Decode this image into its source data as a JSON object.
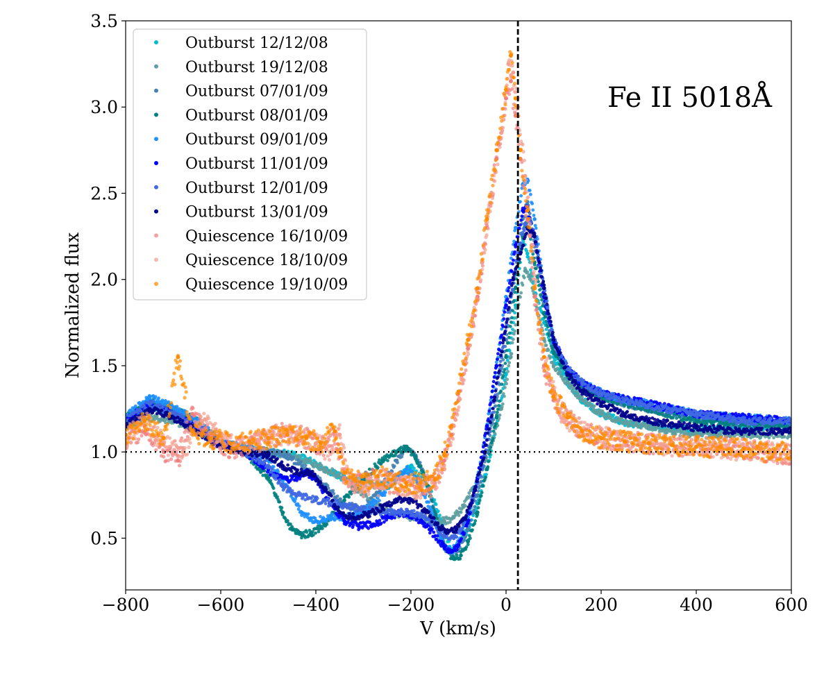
{
  "chart_data": {
    "type": "scatter",
    "title": "",
    "annotation": "Fe II 5018Å",
    "xlabel": "V (km/s)",
    "ylabel": "Normalized flux",
    "xlim": [
      -800,
      600
    ],
    "ylim": [
      0.2,
      3.5
    ],
    "xticks": [
      -800,
      -600,
      -400,
      -200,
      0,
      200,
      400,
      600
    ],
    "xtick_labels": [
      "−800",
      "−600",
      "−400",
      "−200",
      "0",
      "200",
      "400",
      "600"
    ],
    "yticks": [
      0.5,
      1.0,
      1.5,
      2.0,
      2.5,
      3.0,
      3.5
    ],
    "ytick_labels": [
      "0.5",
      "1.0",
      "1.5",
      "2.0",
      "2.5",
      "3.0",
      "3.5"
    ],
    "reference_lines": [
      {
        "orientation": "horizontal",
        "value": 1.0,
        "style": "dotted",
        "color": "#000000"
      },
      {
        "orientation": "vertical",
        "value": 25,
        "style": "dashed",
        "color": "#000000"
      }
    ],
    "legend_position": "top-left",
    "series": [
      {
        "name": "Outburst 12/12/08",
        "color": "#00bcd0",
        "x": [
          -800,
          -750,
          -700,
          -650,
          -600,
          -550,
          -500,
          -460,
          -420,
          -380,
          -340,
          -300,
          -250,
          -200,
          -160,
          -130,
          -115,
          -100,
          -80,
          -60,
          -40,
          -20,
          0,
          20,
          35,
          45,
          60,
          80,
          100,
          130,
          160,
          200,
          250,
          300,
          350,
          400,
          450,
          500,
          550,
          600
        ],
        "y": [
          1.2,
          1.26,
          1.23,
          1.16,
          1.05,
          1.02,
          1.0,
          0.99,
          0.96,
          0.9,
          0.85,
          0.82,
          0.8,
          0.92,
          0.78,
          0.55,
          0.42,
          0.45,
          0.55,
          0.7,
          0.9,
          1.15,
          1.45,
          1.85,
          2.25,
          2.15,
          1.95,
          1.75,
          1.55,
          1.4,
          1.3,
          1.22,
          1.17,
          1.15,
          1.14,
          1.13,
          1.13,
          1.13,
          1.14,
          1.15
        ]
      },
      {
        "name": "Outburst 19/12/08",
        "color": "#5f9ea0",
        "x": [
          -800,
          -750,
          -700,
          -650,
          -600,
          -550,
          -500,
          -460,
          -420,
          -380,
          -340,
          -300,
          -250,
          -200,
          -160,
          -130,
          -110,
          -90,
          -70,
          -50,
          -30,
          -10,
          10,
          25,
          40,
          50,
          60,
          80,
          100,
          130,
          160,
          200,
          250,
          300,
          350,
          400,
          450,
          500,
          550,
          600
        ],
        "y": [
          1.15,
          1.2,
          1.18,
          1.12,
          1.05,
          1.02,
          1.0,
          0.98,
          0.95,
          0.9,
          0.85,
          0.75,
          0.65,
          0.62,
          0.6,
          0.6,
          0.62,
          0.68,
          0.78,
          0.9,
          1.05,
          1.25,
          1.55,
          1.85,
          2.05,
          2.02,
          1.9,
          1.65,
          1.5,
          1.4,
          1.3,
          1.22,
          1.17,
          1.15,
          1.12,
          1.1,
          1.1,
          1.1,
          1.1,
          1.1
        ]
      },
      {
        "name": "Outburst 07/01/09",
        "color": "#4682b4",
        "x": [
          -800,
          -750,
          -700,
          -650,
          -600,
          -550,
          -500,
          -460,
          -420,
          -380,
          -340,
          -300,
          -260,
          -230,
          -210,
          -190,
          -170,
          -150,
          -130,
          -115,
          -100,
          -80,
          -60,
          -40,
          -20,
          0,
          20,
          35,
          45,
          60,
          80,
          100,
          130,
          160,
          200,
          250,
          300,
          400,
          500,
          600
        ],
        "y": [
          1.2,
          1.28,
          1.25,
          1.18,
          1.05,
          1.02,
          1.0,
          0.98,
          0.9,
          0.8,
          0.7,
          0.66,
          0.8,
          0.95,
          1.02,
          0.98,
          0.85,
          0.65,
          0.45,
          0.4,
          0.44,
          0.55,
          0.75,
          1.0,
          1.3,
          1.65,
          2.05,
          2.35,
          2.45,
          2.2,
          1.85,
          1.6,
          1.45,
          1.38,
          1.32,
          1.28,
          1.25,
          1.2,
          1.16,
          1.16
        ]
      },
      {
        "name": "Outburst 08/01/09",
        "color": "#008080",
        "x": [
          -800,
          -750,
          -700,
          -650,
          -600,
          -550,
          -500,
          -470,
          -450,
          -430,
          -410,
          -380,
          -340,
          -300,
          -260,
          -230,
          -210,
          -190,
          -170,
          -150,
          -130,
          -110,
          -95,
          -80,
          -60,
          -40,
          -20,
          0,
          20,
          35,
          45,
          60,
          80,
          100,
          130,
          160,
          200,
          300,
          400,
          600
        ],
        "y": [
          1.2,
          1.3,
          1.25,
          1.18,
          1.05,
          1.0,
          0.85,
          0.65,
          0.55,
          0.52,
          0.53,
          0.58,
          0.72,
          0.85,
          0.95,
          1.0,
          1.02,
          0.96,
          0.85,
          0.65,
          0.45,
          0.38,
          0.4,
          0.48,
          0.65,
          0.9,
          1.2,
          1.55,
          1.95,
          2.25,
          2.35,
          2.1,
          1.8,
          1.58,
          1.45,
          1.38,
          1.32,
          1.25,
          1.18,
          1.15
        ]
      },
      {
        "name": "Outburst 09/01/09",
        "color": "#1e90ff",
        "x": [
          -800,
          -750,
          -700,
          -650,
          -600,
          -550,
          -500,
          -460,
          -430,
          -400,
          -370,
          -340,
          -300,
          -260,
          -230,
          -210,
          -190,
          -170,
          -150,
          -130,
          -115,
          -100,
          -80,
          -60,
          -40,
          -20,
          0,
          20,
          35,
          45,
          60,
          80,
          100,
          130,
          160,
          200,
          250,
          300,
          400,
          600
        ],
        "y": [
          1.2,
          1.32,
          1.26,
          1.18,
          1.06,
          1.02,
          0.95,
          0.8,
          0.65,
          0.6,
          0.62,
          0.62,
          0.65,
          0.75,
          0.85,
          0.9,
          0.85,
          0.75,
          0.6,
          0.45,
          0.42,
          0.48,
          0.62,
          0.85,
          1.15,
          1.5,
          1.9,
          2.3,
          2.55,
          2.58,
          2.35,
          1.95,
          1.65,
          1.48,
          1.4,
          1.35,
          1.3,
          1.28,
          1.22,
          1.18
        ]
      },
      {
        "name": "Outburst 11/01/09",
        "color": "#0000ff",
        "x": [
          -800,
          -750,
          -700,
          -650,
          -600,
          -550,
          -500,
          -480,
          -460,
          -440,
          -420,
          -400,
          -370,
          -340,
          -310,
          -280,
          -250,
          -220,
          -190,
          -160,
          -130,
          -115,
          -100,
          -80,
          -60,
          -40,
          -20,
          0,
          20,
          35,
          45,
          60,
          80,
          100,
          130,
          160,
          200,
          300,
          400,
          600
        ],
        "y": [
          1.18,
          1.28,
          1.22,
          1.15,
          1.05,
          1.0,
          0.9,
          0.85,
          0.84,
          0.85,
          0.88,
          0.85,
          0.7,
          0.6,
          0.57,
          0.58,
          0.62,
          0.65,
          0.62,
          0.55,
          0.45,
          0.42,
          0.46,
          0.6,
          0.85,
          1.15,
          1.5,
          1.85,
          2.2,
          2.4,
          2.42,
          2.25,
          1.9,
          1.65,
          1.48,
          1.4,
          1.34,
          1.28,
          1.22,
          1.18
        ]
      },
      {
        "name": "Outburst 12/01/09",
        "color": "#4169e1",
        "x": [
          -800,
          -750,
          -700,
          -650,
          -600,
          -550,
          -500,
          -470,
          -440,
          -400,
          -360,
          -320,
          -280,
          -240,
          -200,
          -170,
          -150,
          -130,
          -110,
          -90,
          -70,
          -50,
          -30,
          -10,
          10,
          25,
          40,
          50,
          60,
          80,
          100,
          130,
          160,
          200,
          250,
          300,
          350,
          400,
          500,
          600
        ],
        "y": [
          1.18,
          1.28,
          1.22,
          1.15,
          1.05,
          1.0,
          0.92,
          0.8,
          0.75,
          0.72,
          0.7,
          0.68,
          0.66,
          0.65,
          0.65,
          0.62,
          0.58,
          0.52,
          0.5,
          0.58,
          0.72,
          0.92,
          1.2,
          1.55,
          1.9,
          2.15,
          2.32,
          2.35,
          2.25,
          1.95,
          1.65,
          1.48,
          1.4,
          1.34,
          1.3,
          1.27,
          1.24,
          1.22,
          1.18,
          1.18
        ]
      },
      {
        "name": "Outburst 13/01/09",
        "color": "#00008b",
        "x": [
          -800,
          -750,
          -700,
          -650,
          -600,
          -550,
          -500,
          -470,
          -440,
          -410,
          -380,
          -350,
          -320,
          -290,
          -260,
          -230,
          -200,
          -170,
          -145,
          -125,
          -105,
          -85,
          -65,
          -45,
          -25,
          -5,
          15,
          30,
          45,
          60,
          80,
          100,
          130,
          160,
          200,
          250,
          300,
          400,
          500,
          600
        ],
        "y": [
          1.15,
          1.25,
          1.2,
          1.12,
          1.03,
          1.0,
          0.98,
          0.92,
          0.88,
          0.88,
          0.78,
          0.65,
          0.62,
          0.64,
          0.68,
          0.72,
          0.72,
          0.66,
          0.58,
          0.53,
          0.55,
          0.62,
          0.78,
          1.0,
          1.3,
          1.65,
          2.0,
          2.15,
          2.3,
          2.25,
          1.95,
          1.65,
          1.45,
          1.35,
          1.28,
          1.22,
          1.18,
          1.14,
          1.12,
          1.12
        ]
      },
      {
        "name": "Quiescence 16/10/09",
        "color": "#f08080",
        "x": [
          -800,
          -760,
          -720,
          -690,
          -660,
          -620,
          -580,
          -540,
          -500,
          -460,
          -420,
          -390,
          -360,
          -340,
          -320,
          -300,
          -270,
          -240,
          -210,
          -180,
          -150,
          -130,
          -115,
          -100,
          -80,
          -60,
          -40,
          -20,
          0,
          10,
          20,
          30,
          45,
          60,
          80,
          100,
          130,
          160,
          200,
          250,
          300,
          350,
          400,
          450,
          500,
          550,
          600
        ],
        "y": [
          1.05,
          1.15,
          1.0,
          0.95,
          1.22,
          1.1,
          1.0,
          1.05,
          1.08,
          1.12,
          1.08,
          1.02,
          1.1,
          0.85,
          0.82,
          0.82,
          0.85,
          0.82,
          0.8,
          0.8,
          0.82,
          0.95,
          1.1,
          1.3,
          1.6,
          1.9,
          2.3,
          2.7,
          3.05,
          3.15,
          2.95,
          2.7,
          2.35,
          1.9,
          1.5,
          1.3,
          1.2,
          1.12,
          1.08,
          1.06,
          1.05,
          1.04,
          1.03,
          1.03,
          1.02,
          1.0,
          0.98
        ]
      },
      {
        "name": "Quiescence 18/10/09",
        "color": "#f4a090",
        "x": [
          -800,
          -760,
          -720,
          -680,
          -640,
          -600,
          -560,
          -520,
          -480,
          -440,
          -400,
          -370,
          -350,
          -330,
          -300,
          -270,
          -240,
          -210,
          -180,
          -150,
          -130,
          -110,
          -90,
          -70,
          -50,
          -30,
          -10,
          5,
          15,
          25,
          40,
          55,
          70,
          90,
          110,
          140,
          180,
          230,
          280,
          330,
          400,
          450,
          500,
          550,
          600
        ],
        "y": [
          1.08,
          1.18,
          1.05,
          1.0,
          1.18,
          1.08,
          1.02,
          1.06,
          1.1,
          1.1,
          1.05,
          1.0,
          1.1,
          0.82,
          0.8,
          0.8,
          0.82,
          0.8,
          0.78,
          0.8,
          0.9,
          1.15,
          1.45,
          1.75,
          2.1,
          2.5,
          2.85,
          3.25,
          3.2,
          3.0,
          2.6,
          2.2,
          1.75,
          1.45,
          1.25,
          1.15,
          1.1,
          1.07,
          1.05,
          1.04,
          1.03,
          1.02,
          1.01,
          1.0,
          0.99
        ]
      },
      {
        "name": "Quiescence 19/10/09",
        "color": "#ff8c00",
        "x": [
          -800,
          -760,
          -720,
          -690,
          -660,
          -620,
          -580,
          -540,
          -500,
          -460,
          -420,
          -390,
          -360,
          -340,
          -320,
          -300,
          -270,
          -240,
          -210,
          -180,
          -150,
          -130,
          -115,
          -100,
          -80,
          -60,
          -40,
          -20,
          0,
          10,
          20,
          30,
          45,
          60,
          80,
          100,
          130,
          160,
          200,
          250,
          300,
          350,
          400,
          450,
          500,
          550,
          600
        ],
        "y": [
          1.1,
          1.18,
          1.08,
          1.55,
          1.12,
          1.08,
          1.05,
          1.06,
          1.08,
          1.1,
          1.08,
          1.05,
          1.12,
          0.88,
          0.84,
          0.82,
          0.86,
          0.84,
          0.82,
          0.82,
          0.84,
          0.98,
          1.15,
          1.35,
          1.65,
          1.95,
          2.35,
          2.75,
          3.1,
          3.3,
          3.05,
          2.75,
          2.4,
          1.95,
          1.55,
          1.32,
          1.2,
          1.12,
          1.08,
          1.06,
          1.05,
          1.04,
          1.03,
          1.03,
          1.02,
          1.0,
          1.0
        ]
      }
    ]
  }
}
